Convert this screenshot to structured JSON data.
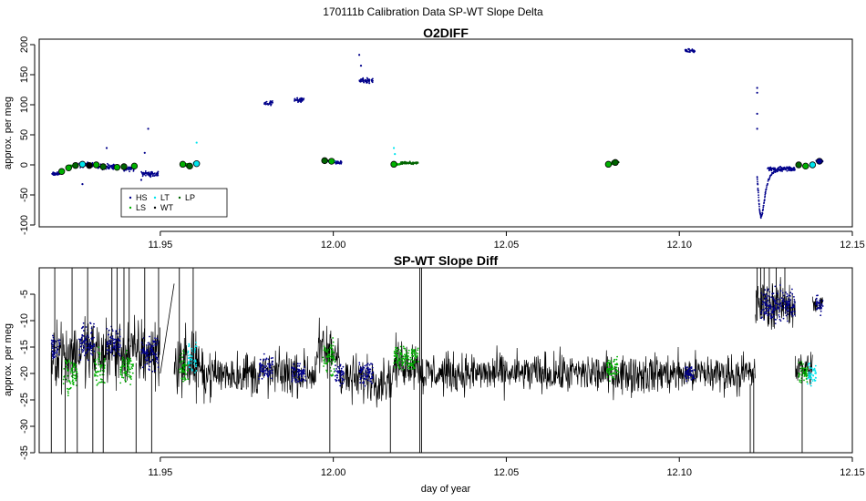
{
  "page": {
    "title": "170111b   Calibration Data SP-WT Slope Delta"
  },
  "colors": {
    "HS": "#00008b",
    "LS": "#00b000",
    "LT": "#00e5ee",
    "WT": "#000000",
    "LP": "#006400",
    "trace": "#000000"
  },
  "chart_data": [
    {
      "type": "scatter",
      "title": "O2DIFF",
      "xlabel": "",
      "ylabel": "approx. per meg",
      "xlim": [
        11.915,
        12.15
      ],
      "ylim": [
        -100,
        205
      ],
      "xticks": [
        11.95,
        12.0,
        12.05,
        12.1,
        12.15
      ],
      "xtick_labels": [
        "11.95",
        "12.00",
        "12.05",
        "12.10",
        "12.15"
      ],
      "yticks": [
        -100,
        -50,
        0,
        50,
        100,
        150,
        200
      ],
      "ytick_labels": [
        "-100",
        "-50",
        "0",
        "50",
        "100",
        "150",
        "200"
      ],
      "legend": {
        "placement": "bottom-left",
        "entries": [
          {
            "label": "HS",
            "key": "HS"
          },
          {
            "label": "LS",
            "key": "LS"
          },
          {
            "label": "LT",
            "key": "LT"
          },
          {
            "label": "WT",
            "key": "WT"
          },
          {
            "label": "LP",
            "key": "LP"
          }
        ]
      },
      "clusters": [
        {
          "series": "HS",
          "x0": 11.9185,
          "x1": 11.921,
          "y": -15,
          "spread": 4
        },
        {
          "series": "HS",
          "x0": 11.9265,
          "x1": 11.9305,
          "y": 0,
          "spread": 6
        },
        {
          "series": "HS",
          "x0": 11.932,
          "x1": 11.9375,
          "y": -3,
          "spread": 6
        },
        {
          "series": "HS",
          "x0": 11.9395,
          "x1": 11.9425,
          "y": -6,
          "spread": 6
        },
        {
          "series": "HS",
          "x0": 11.9445,
          "x1": 11.9495,
          "y": -15,
          "spread": 6
        },
        {
          "series": "HS",
          "x0": 11.98,
          "x1": 11.9825,
          "y": 103,
          "spread": 5
        },
        {
          "series": "HS",
          "x0": 11.9885,
          "x1": 11.9915,
          "y": 108,
          "spread": 5
        },
        {
          "series": "HS",
          "x0": 12.0005,
          "x1": 12.0025,
          "y": 4,
          "spread": 3
        },
        {
          "series": "HS",
          "x0": 12.0075,
          "x1": 12.0115,
          "y": 140,
          "spread": 6
        },
        {
          "series": "HS",
          "x0": 12.1015,
          "x1": 12.1045,
          "y": 190,
          "spread": 4
        },
        {
          "series": "HS",
          "x0": 12.1255,
          "x1": 12.1335,
          "y": -7,
          "spread": 5
        },
        {
          "series": "HS",
          "x0": 12.1395,
          "x1": 12.1415,
          "y": 6,
          "spread": 2
        },
        {
          "series": "LS",
          "x0": 11.9235,
          "x1": 11.9255,
          "y": -2,
          "spread": 2
        },
        {
          "series": "LS",
          "x0": 11.9565,
          "x1": 11.958,
          "y": 1,
          "spread": 2
        },
        {
          "series": "LS",
          "x0": 12.0175,
          "x1": 12.0195,
          "y": 1,
          "spread": 2
        },
        {
          "series": "LS",
          "x0": 12.0795,
          "x1": 12.0815,
          "y": 2,
          "spread": 2
        },
        {
          "series": "LP",
          "x0": 11.9575,
          "x1": 11.959,
          "y": -2,
          "spread": 2
        },
        {
          "series": "LP",
          "x0": 12.0195,
          "x1": 12.0245,
          "y": 3,
          "spread": 3
        },
        {
          "series": "LP",
          "x0": 12.0805,
          "x1": 12.0825,
          "y": 5,
          "spread": 2
        },
        {
          "series": "LT",
          "x0": 11.9595,
          "x1": 11.961,
          "y": 3,
          "spread": 3
        },
        {
          "series": "LT",
          "x0": 11.9985,
          "x1": 12.0005,
          "y": 6,
          "spread": 2
        },
        {
          "series": "WT",
          "x0": 11.9975,
          "x1": 11.9985,
          "y": 7,
          "spread": 1
        }
      ],
      "spike_points": [
        {
          "series": "HS",
          "x": 11.9345,
          "y": 28
        },
        {
          "series": "HS",
          "x": 11.9465,
          "y": 60
        },
        {
          "series": "HS",
          "x": 11.9455,
          "y": 20
        },
        {
          "series": "HS",
          "x": 11.9275,
          "y": -32
        },
        {
          "series": "HS",
          "x": 11.9445,
          "y": -25
        },
        {
          "series": "HS",
          "x": 12.0075,
          "y": 183
        },
        {
          "series": "HS",
          "x": 12.008,
          "y": 165
        },
        {
          "series": "HS",
          "x": 12.1225,
          "y": 128
        },
        {
          "series": "HS",
          "x": 12.1225,
          "y": 120
        },
        {
          "series": "HS",
          "x": 12.1225,
          "y": 85
        },
        {
          "series": "HS",
          "x": 12.1225,
          "y": 60
        },
        {
          "series": "LT",
          "x": 11.9605,
          "y": 37
        },
        {
          "series": "LT",
          "x": 12.0175,
          "y": 28
        },
        {
          "series": "LT",
          "x": 12.0178,
          "y": 18
        }
      ],
      "recovery_curve": {
        "series": "HS",
        "points": [
          [
            12.1225,
            -20
          ],
          [
            12.1228,
            -45
          ],
          [
            12.1232,
            -75
          ],
          [
            12.1236,
            -88
          ],
          [
            12.124,
            -80
          ],
          [
            12.1245,
            -62
          ],
          [
            12.125,
            -42
          ],
          [
            12.1258,
            -25
          ],
          [
            12.1268,
            -14
          ],
          [
            12.128,
            -10
          ],
          [
            12.13,
            -8
          ]
        ]
      },
      "circle_markers": [
        {
          "x": 11.9215,
          "y": -11,
          "series": "LS"
        },
        {
          "x": 11.9235,
          "y": -5,
          "series": "LS"
        },
        {
          "x": 11.9255,
          "y": -1,
          "series": "LP"
        },
        {
          "x": 11.9275,
          "y": 1,
          "series": "LT"
        },
        {
          "x": 11.9295,
          "y": -1,
          "series": "WT"
        },
        {
          "x": 11.9315,
          "y": 0,
          "series": "LS"
        },
        {
          "x": 11.9335,
          "y": -3,
          "series": "LP"
        },
        {
          "x": 11.9375,
          "y": -4,
          "series": "LS"
        },
        {
          "x": 11.9395,
          "y": -3,
          "series": "LP"
        },
        {
          "x": 11.9425,
          "y": -2,
          "series": "LS"
        },
        {
          "x": 11.9565,
          "y": 1,
          "series": "LS"
        },
        {
          "x": 11.9585,
          "y": -2,
          "series": "LP"
        },
        {
          "x": 11.9605,
          "y": 2,
          "series": "LT"
        },
        {
          "x": 11.9975,
          "y": 7,
          "series": "LP"
        },
        {
          "x": 11.9995,
          "y": 6,
          "series": "LS"
        },
        {
          "x": 12.0175,
          "y": 1,
          "series": "LS"
        },
        {
          "x": 12.0795,
          "y": 1,
          "series": "LS"
        },
        {
          "x": 12.0815,
          "y": 4,
          "series": "LP"
        },
        {
          "x": 12.1345,
          "y": 0,
          "series": "LP"
        },
        {
          "x": 12.1365,
          "y": -2,
          "series": "LS"
        },
        {
          "x": 12.1385,
          "y": 0,
          "series": "LT"
        },
        {
          "x": 12.1405,
          "y": 6,
          "series": "HS"
        }
      ]
    },
    {
      "type": "line",
      "title": "SP-WT Slope Diff",
      "xlabel": "day of year",
      "ylabel": "approx. per meg",
      "xlim": [
        11.915,
        12.15
      ],
      "ylim": [
        -35,
        0
      ],
      "xticks": [
        11.95,
        12.0,
        12.05,
        12.1,
        12.15
      ],
      "xtick_labels": [
        "11.95",
        "12.00",
        "12.05",
        "12.10",
        "12.15"
      ],
      "yticks": [
        -35,
        -30,
        -25,
        -20,
        -15,
        -10,
        -5
      ],
      "ytick_labels": [
        "-35",
        "-30",
        "-25",
        "-20",
        "-15",
        "-10",
        "-5"
      ],
      "grid": false,
      "trace_segments": [
        {
          "x0": 11.9185,
          "x1": 11.95,
          "mean": -16,
          "noise": 6
        },
        {
          "x0": 11.954,
          "x1": 11.961,
          "mean": -18,
          "noise": 6
        },
        {
          "x0": 11.961,
          "x1": 11.995,
          "mean": -20,
          "noise": 4
        },
        {
          "x0": 11.995,
          "x1": 12.002,
          "mean": -16,
          "noise": 5
        },
        {
          "x0": 12.002,
          "x1": 12.0175,
          "mean": -21,
          "noise": 4
        },
        {
          "x0": 12.0175,
          "x1": 12.025,
          "mean": -18,
          "noise": 4
        },
        {
          "x0": 12.025,
          "x1": 12.122,
          "mean": -20,
          "noise": 3.5
        },
        {
          "x0": 12.122,
          "x1": 12.1335,
          "mean": -7,
          "noise": 4
        },
        {
          "x0": 12.1335,
          "x1": 12.1385,
          "mean": -19,
          "noise": 3
        },
        {
          "x0": 12.1385,
          "x1": 12.1415,
          "mean": -7,
          "noise": 2
        }
      ],
      "color_overlays": [
        {
          "series": "HS",
          "x0": 11.9185,
          "x1": 11.921,
          "mean": -15,
          "noise": 3
        },
        {
          "series": "LS",
          "x0": 11.922,
          "x1": 11.926,
          "mean": -20,
          "noise": 3
        },
        {
          "series": "HS",
          "x0": 11.9265,
          "x1": 11.931,
          "mean": -14,
          "noise": 3
        },
        {
          "series": "LS",
          "x0": 11.931,
          "x1": 11.934,
          "mean": -19,
          "noise": 3
        },
        {
          "series": "HS",
          "x0": 11.9345,
          "x1": 11.9385,
          "mean": -14,
          "noise": 3
        },
        {
          "series": "LS",
          "x0": 11.9385,
          "x1": 11.9425,
          "mean": -19,
          "noise": 3
        },
        {
          "series": "HS",
          "x0": 11.9445,
          "x1": 11.9495,
          "mean": -16,
          "noise": 3
        },
        {
          "series": "LS",
          "x0": 11.9555,
          "x1": 11.958,
          "mean": -19,
          "noise": 3
        },
        {
          "series": "LT",
          "x0": 11.958,
          "x1": 11.9605,
          "mean": -17,
          "noise": 3
        },
        {
          "series": "HS",
          "x0": 11.9785,
          "x1": 11.9825,
          "mean": -19,
          "noise": 2
        },
        {
          "series": "HS",
          "x0": 11.988,
          "x1": 11.992,
          "mean": -20,
          "noise": 2
        },
        {
          "series": "LS",
          "x0": 11.997,
          "x1": 12.0005,
          "mean": -17,
          "noise": 3
        },
        {
          "series": "HS",
          "x0": 12.0005,
          "x1": 12.003,
          "mean": -20,
          "noise": 2
        },
        {
          "series": "HS",
          "x0": 12.0075,
          "x1": 12.0115,
          "mean": -20,
          "noise": 2
        },
        {
          "series": "LS",
          "x0": 12.0175,
          "x1": 12.0245,
          "mean": -17,
          "noise": 2
        },
        {
          "series": "LS",
          "x0": 12.079,
          "x1": 12.0825,
          "mean": -19,
          "noise": 2
        },
        {
          "series": "HS",
          "x0": 12.1015,
          "x1": 12.1045,
          "mean": -20,
          "noise": 1.5
        },
        {
          "series": "HS",
          "x0": 12.1235,
          "x1": 12.1335,
          "mean": -7,
          "noise": 3
        },
        {
          "series": "LS",
          "x0": 12.1345,
          "x1": 12.137,
          "mean": -20,
          "noise": 2
        },
        {
          "series": "LT",
          "x0": 12.137,
          "x1": 12.1395,
          "mean": -20,
          "noise": 2
        },
        {
          "series": "HS",
          "x0": 12.1395,
          "x1": 12.1415,
          "mean": -7,
          "noise": 1.5
        }
      ],
      "spike_lines": [
        {
          "x": 11.9195,
          "from": -16,
          "to": 0
        },
        {
          "x": 11.9185,
          "from": -16,
          "to": -35
        },
        {
          "x": 11.9225,
          "from": -18,
          "to": -35
        },
        {
          "x": 11.9245,
          "from": -14,
          "to": 0
        },
        {
          "x": 11.926,
          "from": -20,
          "to": -35
        },
        {
          "x": 11.929,
          "from": -15,
          "to": 0
        },
        {
          "x": 11.9305,
          "from": -18,
          "to": -35
        },
        {
          "x": 11.9335,
          "from": -15,
          "to": -35
        },
        {
          "x": 11.936,
          "from": -13,
          "to": 0
        },
        {
          "x": 11.9375,
          "from": -17,
          "to": 0
        },
        {
          "x": 11.9395,
          "from": -18,
          "to": 0
        },
        {
          "x": 11.941,
          "from": -14,
          "to": 0
        },
        {
          "x": 11.943,
          "from": -18,
          "to": -35
        },
        {
          "x": 11.9455,
          "from": -14,
          "to": 0
        },
        {
          "x": 11.9475,
          "from": -16,
          "to": -35
        },
        {
          "x": 11.9495,
          "from": -17,
          "to": 0
        },
        {
          "x": 11.9555,
          "from": -18,
          "to": 0
        },
        {
          "x": 11.9595,
          "from": -18,
          "to": 0
        },
        {
          "x": 11.999,
          "from": -17,
          "to": -35
        },
        {
          "x": 12.0165,
          "from": -20,
          "to": -35
        },
        {
          "x": 12.025,
          "from": -35,
          "to": 0
        },
        {
          "x": 12.0255,
          "from": -35,
          "to": 0
        },
        {
          "x": 12.1205,
          "from": -22,
          "to": -35
        },
        {
          "x": 12.1215,
          "from": -20,
          "to": -35
        },
        {
          "x": 12.1225,
          "from": -10,
          "to": 0
        },
        {
          "x": 12.1235,
          "from": -8,
          "to": 0
        },
        {
          "x": 12.1245,
          "from": -6,
          "to": 0
        },
        {
          "x": 12.126,
          "from": -7,
          "to": 0
        },
        {
          "x": 12.128,
          "from": -6,
          "to": 0
        },
        {
          "x": 12.1305,
          "from": -7,
          "to": 0
        },
        {
          "x": 12.1355,
          "from": -19,
          "to": -35
        }
      ],
      "connectors": [
        {
          "x0": 11.95,
          "y0": -20,
          "x1": 11.954,
          "y1": -3
        }
      ]
    }
  ]
}
